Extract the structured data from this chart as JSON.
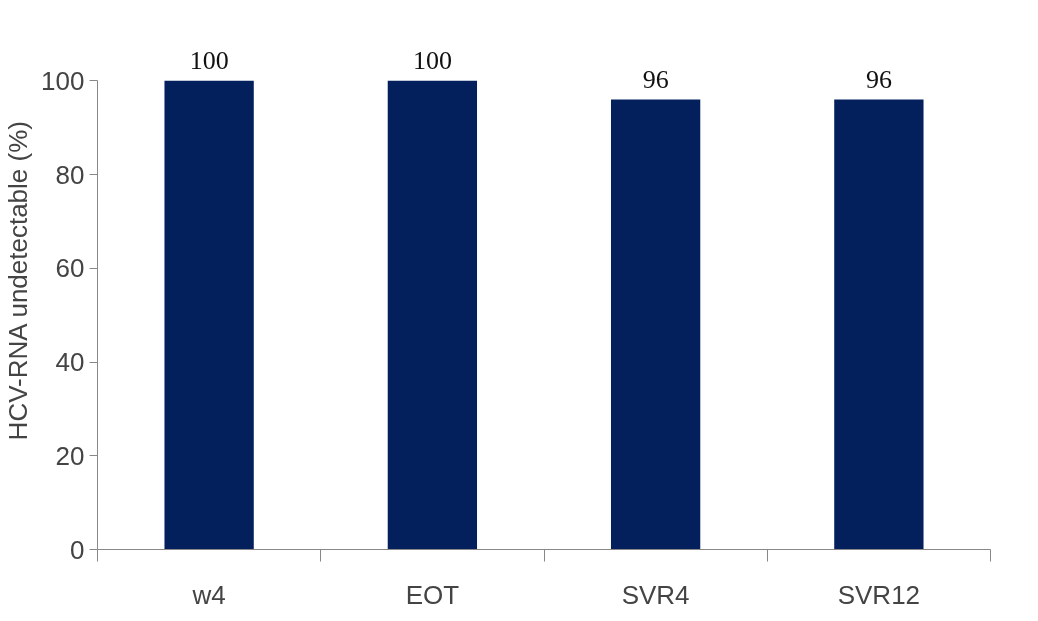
{
  "chart_data": {
    "type": "bar",
    "ylabel": "HCV-RNA undetectable (%)",
    "categories": [
      "w4",
      "EOT",
      "SVR4",
      "SVR12"
    ],
    "values": [
      100,
      100,
      96,
      96
    ],
    "color": "#03205c",
    "ylim": [
      0,
      100
    ],
    "yticks": [
      0,
      20,
      40,
      60,
      80,
      100
    ],
    "grid": false,
    "data_labels": true
  }
}
